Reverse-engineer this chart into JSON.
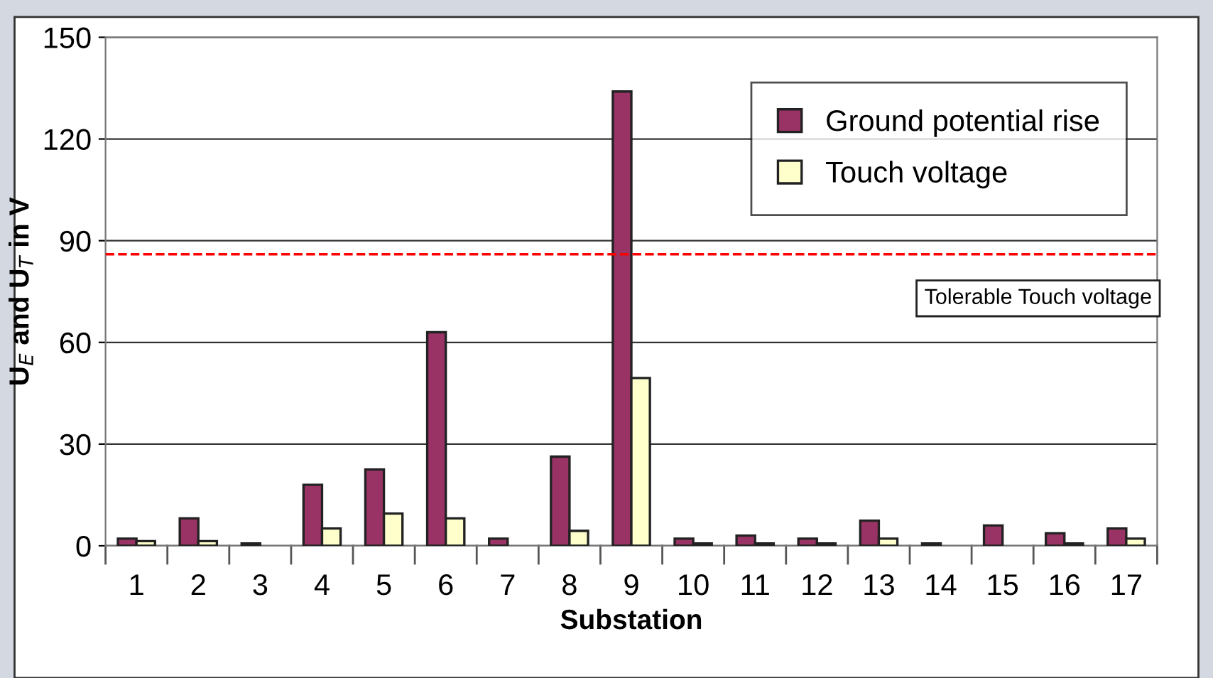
{
  "chart_data": {
    "type": "bar",
    "xlabel": "Substation",
    "ylabel": "U$_{E}$ and U$_{T}$ in V",
    "categories": [
      "1",
      "2",
      "3",
      "4",
      "5",
      "6",
      "7",
      "8",
      "9",
      "10",
      "11",
      "12",
      "13",
      "14",
      "15",
      "16",
      "17"
    ],
    "series": [
      {
        "name": "Ground potential rise",
        "color": "#993366",
        "values": [
          2.1,
          8.1,
          0.7,
          18,
          22.5,
          63,
          2.1,
          26.3,
          134,
          2.1,
          3,
          2.1,
          7.4,
          0.7,
          6,
          3.7,
          5.1
        ]
      },
      {
        "name": "Touch voltage",
        "color": "#ffffcc",
        "values": [
          1.4,
          1.4,
          0,
          5.1,
          9.5,
          8.1,
          0,
          4.4,
          49.5,
          0.7,
          0.7,
          0.7,
          2.1,
          0,
          0,
          0.7,
          2.1
        ]
      }
    ],
    "ylim": [
      0,
      150
    ],
    "yticks": [
      0,
      30,
      60,
      90,
      120,
      150
    ],
    "grid": "y",
    "legend": "top right",
    "ref_lines": [
      {
        "axis": "y",
        "value": 86,
        "label": "Tolerable Touch voltage",
        "color": "#ff0000",
        "line_style": "dashed"
      }
    ]
  }
}
